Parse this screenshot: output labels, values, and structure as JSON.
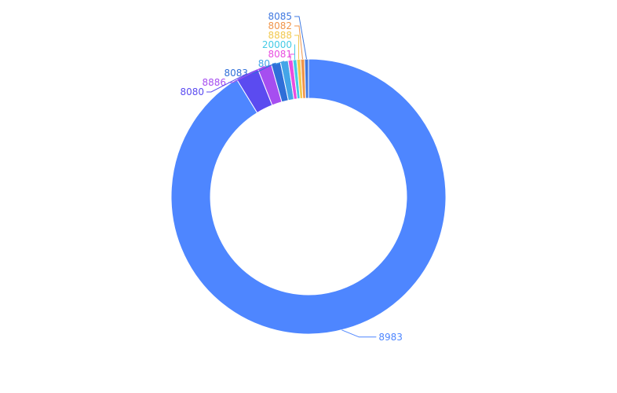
{
  "chart_data": {
    "type": "pie",
    "title": "",
    "inner_radius_ratio": 0.714,
    "start_angle_deg": 90,
    "direction": "clockwise",
    "slices": [
      {
        "label": "8983",
        "value": 1000,
        "color": "#4e86ff",
        "side": "right"
      },
      {
        "label": "8080",
        "value": 30,
        "color": "#5b4bf0",
        "side": "left"
      },
      {
        "label": "8886",
        "value": 18,
        "color": "#a64ef0",
        "side": "left"
      },
      {
        "label": "8083",
        "value": 12,
        "color": "#2f6fd8",
        "side": "left"
      },
      {
        "label": "80",
        "value": 10,
        "color": "#44a5e8",
        "side": "left"
      },
      {
        "label": "8081",
        "value": 6,
        "color": "#e84de0",
        "side": "left"
      },
      {
        "label": "20000",
        "value": 5,
        "color": "#45cbe5",
        "side": "left"
      },
      {
        "label": "8888",
        "value": 5,
        "color": "#f2c94e",
        "side": "left"
      },
      {
        "label": "8082",
        "value": 5,
        "color": "#f0954a",
        "side": "left"
      },
      {
        "label": "8085",
        "value": 5,
        "color": "#3f78e0",
        "side": "left"
      }
    ]
  }
}
